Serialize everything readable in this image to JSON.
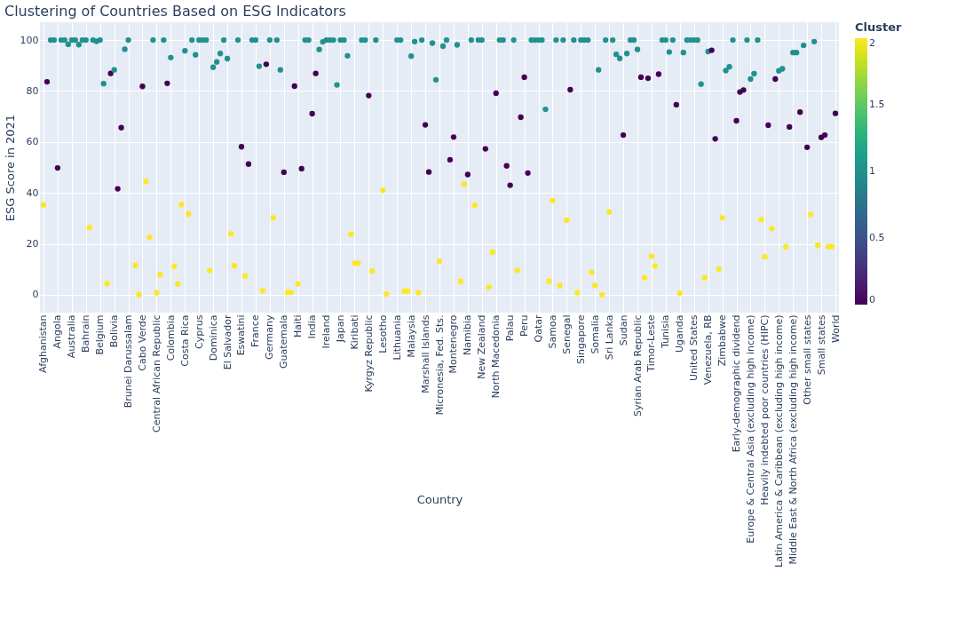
{
  "chart_data": {
    "type": "scatter",
    "title": "Clustering of Countries Based on ESG Indicators",
    "xlabel": "Country",
    "ylabel": "ESG Score in 2021",
    "clabel": "Cluster",
    "categories": [
      "Afghanistan",
      null,
      null,
      null,
      "Angola",
      null,
      null,
      null,
      "Australia",
      null,
      null,
      null,
      "Bahrain",
      null,
      null,
      null,
      "Belgium",
      null,
      null,
      null,
      "Bolivia",
      null,
      null,
      null,
      "Brunei Darussalam",
      null,
      null,
      null,
      "Cabo Verde",
      null,
      null,
      null,
      "Central African Republic",
      null,
      null,
      null,
      "Colombia",
      null,
      null,
      null,
      "Costa Rica",
      null,
      null,
      null,
      "Cyprus",
      null,
      null,
      null,
      "Dominica",
      null,
      null,
      null,
      "El Salvador",
      null,
      null,
      null,
      "Eswatini",
      null,
      null,
      null,
      "France",
      null,
      null,
      null,
      "Germany",
      null,
      null,
      null,
      "Guatemala",
      null,
      null,
      null,
      "Haiti",
      null,
      null,
      null,
      "India",
      null,
      null,
      null,
      "Ireland",
      null,
      null,
      null,
      "Japan",
      null,
      null,
      null,
      "Kiribati",
      null,
      null,
      null,
      "Kyrgyz Republic",
      null,
      null,
      null,
      "Lesotho",
      null,
      null,
      null,
      "Lithuania",
      null,
      null,
      null,
      "Malaysia",
      null,
      null,
      null,
      "Marshall Islands",
      null,
      null,
      null,
      "Micronesia, Fed. Sts.",
      null,
      null,
      null,
      "Montenegro",
      null,
      null,
      null,
      "Namibia",
      null,
      null,
      null,
      "New Zealand",
      null,
      null,
      null,
      "North Macedonia",
      null,
      null,
      null,
      "Palau",
      null,
      null,
      null,
      "Peru",
      null,
      null,
      null,
      "Qatar",
      null,
      null,
      null,
      "Samoa",
      null,
      null,
      null,
      "Senegal",
      null,
      null,
      null,
      "Singapore",
      null,
      null,
      null,
      "Somalia",
      null,
      null,
      null,
      "Sri Lanka",
      null,
      null,
      null,
      "Sudan",
      null,
      null,
      null,
      "Syrian Arab Republic",
      null,
      null,
      null,
      "Timor-Leste",
      null,
      null,
      null,
      "Tunisia",
      null,
      null,
      null,
      "Uganda",
      null,
      null,
      null,
      "United States",
      null,
      null,
      null,
      "Venezuela, RB",
      null,
      null,
      null,
      "Zimbabwe",
      null,
      null,
      null,
      "Early-demographic dividend",
      null,
      null,
      null,
      "Europe & Central Asia (excluding high income)",
      null,
      null,
      null,
      "Heavily indebted poor countries (HIPC)",
      null,
      null,
      null,
      "Latin America & Caribbean (excluding high income)",
      null,
      null,
      null,
      "Middle East & North Africa (excluding high income)",
      null,
      null,
      null,
      "Other small states",
      null,
      null,
      null,
      "Small states",
      null,
      null,
      null,
      "World"
    ],
    "values": [
      35.3,
      83.6,
      100,
      100,
      49.8,
      100,
      100,
      98.3,
      100,
      100,
      98.2,
      100,
      100,
      26.4,
      100,
      99.5,
      100,
      82.9,
      4.4,
      86.9,
      88.3,
      41.6,
      65.6,
      96.4,
      100,
      null,
      11.6,
      0.1,
      81.8,
      44.5,
      22.6,
      100,
      0.8,
      7.9,
      100,
      83.0,
      93.1,
      11.1,
      4.3,
      35.4,
      95.8,
      31.7,
      100,
      94.2,
      100,
      100,
      100,
      9.5,
      89.3,
      91.4,
      94.7,
      100,
      92.7,
      23.9,
      11.4,
      100,
      58.1,
      7.4,
      51.3,
      100,
      100,
      89.7,
      1.6,
      90.5,
      100,
      30.2,
      100,
      88.3,
      48.1,
      0.9,
      0.9,
      81.9,
      4.3,
      49.5,
      100,
      100,
      71.1,
      86.9,
      96.3,
      99.3,
      100,
      100,
      100,
      82.4,
      100,
      100,
      93.8,
      23.8,
      12.4,
      12.4,
      100,
      100,
      78.2,
      9.3,
      100,
      null,
      41.0,
      0.3,
      null,
      null,
      100,
      100,
      1.4,
      1.4,
      93.7,
      99.4,
      0.8,
      100,
      66.7,
      48.2,
      98.8,
      84.4,
      13.2,
      97.6,
      100,
      53.0,
      61.9,
      98.1,
      5.3,
      43.4,
      47.2,
      100,
      35.1,
      100,
      100,
      57.3,
      3.0,
      16.7,
      79.1,
      100,
      100,
      50.6,
      43.0,
      100,
      9.6,
      69.7,
      85.4,
      47.8,
      100,
      100,
      100,
      100,
      72.8,
      5.3,
      37.0,
      100,
      3.6,
      100,
      29.3,
      80.5,
      100,
      0.8,
      100,
      100,
      100,
      8.8,
      3.7,
      88.3,
      0.0,
      100,
      32.5,
      100,
      94.4,
      92.8,
      62.7,
      94.7,
      100,
      100,
      96.3,
      85.4,
      6.7,
      85.0,
      15.1,
      11.3,
      86.6,
      100,
      100,
      95.3,
      100,
      74.6,
      0.6,
      95.1,
      100,
      100,
      100,
      100,
      82.7,
      6.7,
      95.5,
      96.0,
      61.2,
      10.1,
      30.2,
      88.0,
      89.5,
      100,
      68.3,
      79.6,
      80.4,
      100,
      84.7,
      86.8,
      100,
      29.5,
      14.9,
      66.6,
      26.0,
      84.7,
      87.9,
      88.7,
      18.8,
      65.9,
      95.1,
      95.1,
      71.7,
      97.9,
      57.9,
      31.5,
      99.4,
      19.4,
      61.8,
      62.7,
      18.9,
      18.9,
      71.2
    ],
    "cvalues": [
      2,
      0,
      1,
      1,
      0,
      1,
      1,
      1,
      1,
      1,
      1,
      1,
      1,
      2,
      1,
      1,
      1,
      1,
      2,
      0,
      1,
      0,
      0,
      1,
      1,
      null,
      2,
      2,
      0,
      2,
      2,
      1,
      2,
      2,
      1,
      0,
      1,
      2,
      2,
      2,
      1,
      2,
      1,
      1,
      1,
      1,
      1,
      2,
      1,
      1,
      1,
      1,
      1,
      2,
      2,
      1,
      0,
      2,
      0,
      1,
      1,
      1,
      2,
      0,
      1,
      2,
      1,
      1,
      0,
      2,
      2,
      0,
      2,
      0,
      1,
      1,
      0,
      0,
      1,
      1,
      1,
      1,
      1,
      1,
      1,
      1,
      1,
      2,
      2,
      2,
      1,
      1,
      0,
      2,
      1,
      null,
      2,
      2,
      null,
      null,
      1,
      1,
      2,
      2,
      1,
      1,
      2,
      1,
      0,
      0,
      1,
      1,
      2,
      1,
      1,
      0,
      0,
      1,
      2,
      2,
      0,
      1,
      2,
      1,
      1,
      0,
      2,
      2,
      0,
      1,
      1,
      0,
      0,
      1,
      2,
      0,
      0,
      0,
      1,
      1,
      1,
      1,
      1,
      2,
      2,
      1,
      2,
      1,
      2,
      0,
      1,
      2,
      1,
      1,
      1,
      2,
      2,
      1,
      2,
      1,
      2,
      1,
      1,
      1,
      0,
      1,
      1,
      1,
      1,
      0,
      2,
      0,
      2,
      2,
      0,
      1,
      1,
      1,
      1,
      0,
      2,
      1,
      1,
      1,
      1,
      1,
      1,
      2,
      1,
      0,
      0,
      2,
      2,
      1,
      1,
      1,
      0,
      0,
      0,
      1,
      1,
      1,
      1,
      2,
      2,
      0,
      2,
      0,
      1,
      1,
      2,
      0,
      1,
      1,
      0,
      1,
      0,
      2,
      1,
      2,
      0,
      0,
      2,
      2,
      0
    ],
    "ylim": [
      -7,
      107
    ],
    "yticks": [
      0,
      20,
      40,
      60,
      80,
      100
    ],
    "clim": [
      0,
      2
    ],
    "cticks": [
      0,
      0.5,
      1,
      1.5,
      2
    ],
    "grid": true,
    "marker": "circle"
  }
}
